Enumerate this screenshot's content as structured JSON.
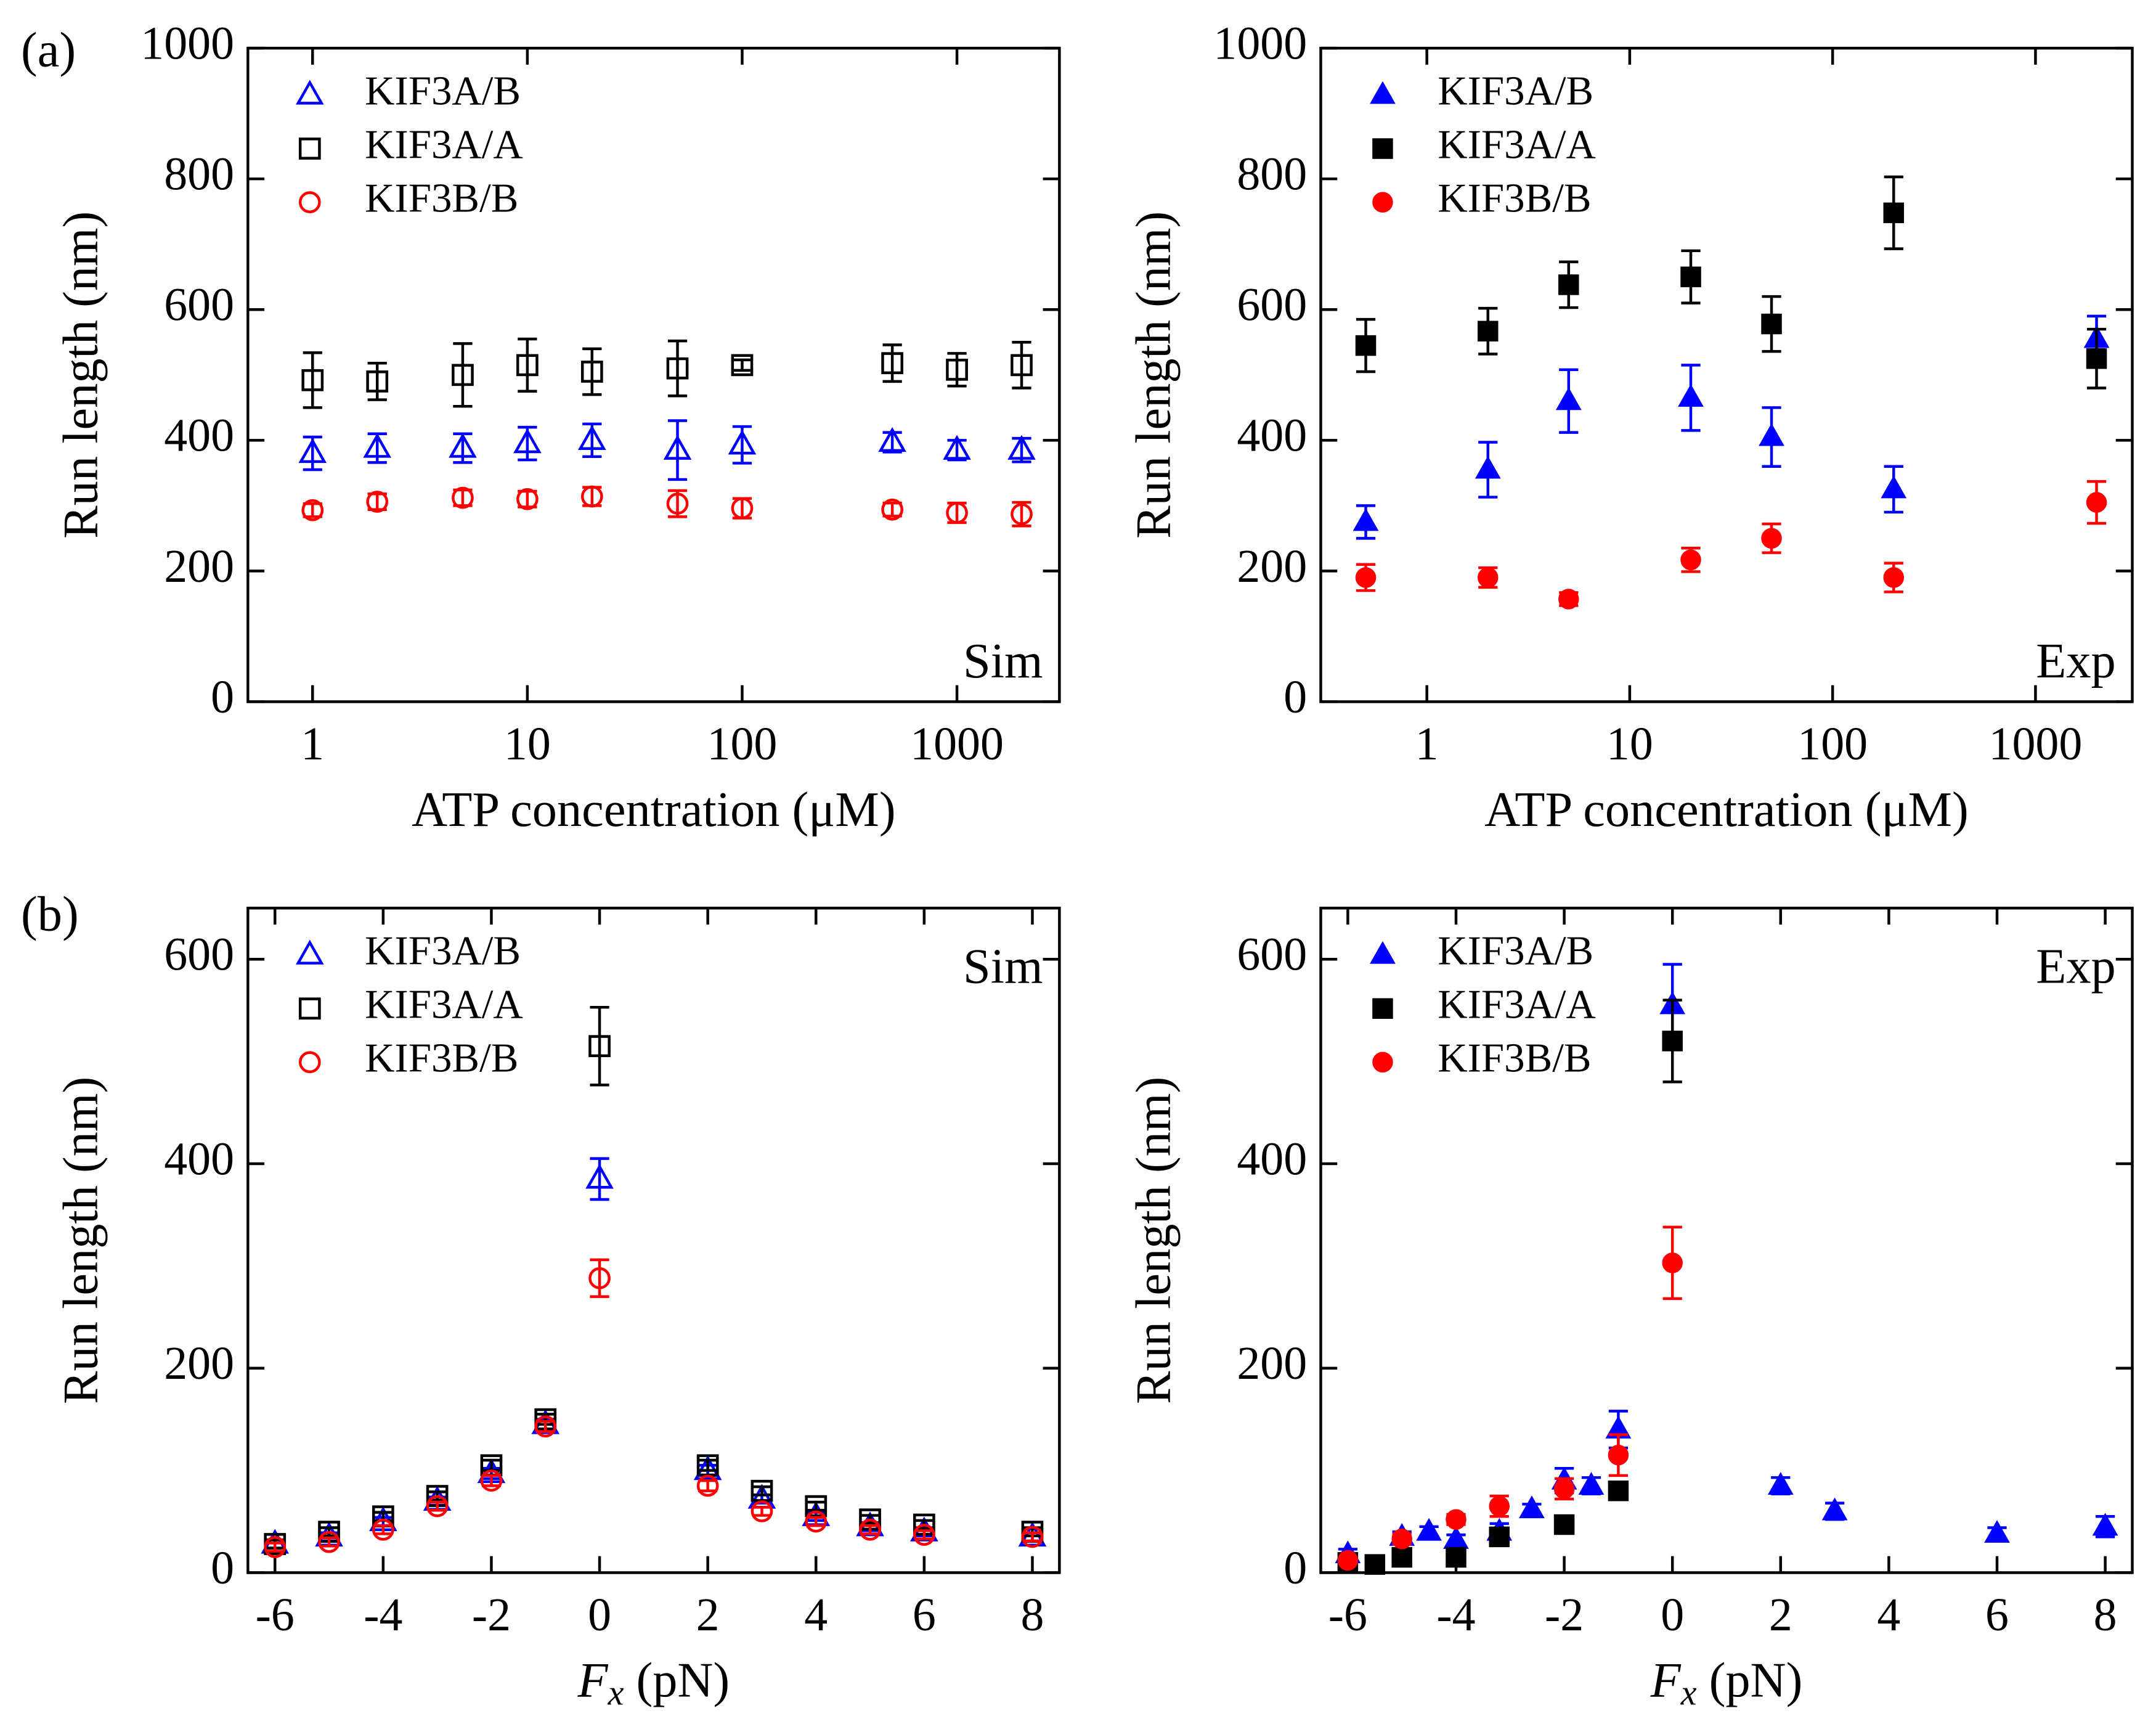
{
  "chart_data": [
    {
      "type": "scatter",
      "panel_label": "(a)",
      "annotation": "Sim",
      "annotation_corner": "lower right",
      "x_label": "ATP concentration (μM)",
      "y_label": "Run length (nm)",
      "xscale": "log",
      "xlim": [
        0.5,
        3000
      ],
      "ylim": [
        0,
        1000
      ],
      "xticks": [
        1,
        10,
        100,
        1000
      ],
      "yticks": [
        0,
        200,
        400,
        600,
        800,
        1000
      ],
      "legend": "upper left",
      "series": [
        {
          "name": "KIF3A/B",
          "color": "#0000ff",
          "marker": "triangle-open",
          "x": [
            1,
            2,
            5,
            10,
            20,
            50,
            100,
            500,
            1000,
            2000
          ],
          "values": [
            380,
            388,
            388,
            395,
            400,
            385,
            393,
            397,
            385,
            385
          ],
          "errors": [
            25,
            22,
            22,
            25,
            25,
            45,
            28,
            15,
            15,
            18
          ]
        },
        {
          "name": "KIF3A/A",
          "color": "#000000",
          "marker": "square-open",
          "x": [
            1,
            2,
            5,
            10,
            20,
            50,
            100,
            500,
            1000,
            2000
          ],
          "values": [
            492,
            490,
            500,
            515,
            505,
            510,
            515,
            518,
            508,
            515
          ],
          "errors": [
            42,
            28,
            48,
            40,
            35,
            42,
            8,
            28,
            25,
            35
          ]
        },
        {
          "name": "KIF3B/B",
          "color": "#ff0000",
          "marker": "circle-open",
          "x": [
            1,
            2,
            5,
            10,
            20,
            50,
            100,
            500,
            1000,
            2000
          ],
          "values": [
            293,
            306,
            312,
            310,
            314,
            303,
            296,
            294,
            289,
            287
          ],
          "errors": [
            10,
            12,
            12,
            12,
            14,
            20,
            15,
            10,
            15,
            18
          ]
        }
      ]
    },
    {
      "type": "scatter",
      "annotation": "Exp",
      "annotation_corner": "lower right",
      "x_label": "ATP concentration (μM)",
      "y_label": "Run length (nm)",
      "xscale": "log",
      "xlim": [
        0.3,
        3000
      ],
      "ylim": [
        0,
        1000
      ],
      "xticks": [
        1,
        10,
        100,
        1000
      ],
      "yticks": [
        0,
        200,
        400,
        600,
        800,
        1000
      ],
      "legend": "upper left",
      "series": [
        {
          "name": "KIF3A/B",
          "color": "#0000ff",
          "marker": "triangle",
          "x": [
            0.5,
            2,
            5,
            20,
            50,
            200,
            2000
          ],
          "values": [
            275,
            355,
            460,
            465,
            405,
            325,
            555
          ],
          "errors": [
            25,
            42,
            48,
            50,
            45,
            35,
            35
          ]
        },
        {
          "name": "KIF3A/A",
          "color": "#000000",
          "marker": "square",
          "x": [
            0.5,
            2,
            5,
            20,
            50,
            200,
            2000
          ],
          "values": [
            545,
            567,
            638,
            650,
            578,
            748,
            525
          ],
          "errors": [
            40,
            35,
            35,
            40,
            42,
            55,
            45
          ]
        },
        {
          "name": "KIF3B/B",
          "color": "#ff0000",
          "marker": "circle",
          "x": [
            0.5,
            2,
            5,
            20,
            50,
            200,
            2000
          ],
          "values": [
            190,
            190,
            157,
            217,
            250,
            190,
            305
          ],
          "errors": [
            20,
            15,
            10,
            18,
            22,
            22,
            32
          ]
        }
      ]
    },
    {
      "type": "scatter",
      "panel_label": "(b)",
      "annotation": "Sim",
      "annotation_corner": "upper right",
      "x_label": {
        "symbol": "F",
        "subscript": "x",
        "unit": "(pN)"
      },
      "y_label": "Run length (nm)",
      "xlim": [
        -6.5,
        8.5
      ],
      "ylim": [
        0,
        650
      ],
      "xticks": [
        -6,
        -4,
        -2,
        0,
        2,
        4,
        6,
        8
      ],
      "yticks": [
        0,
        200,
        400,
        600
      ],
      "legend": "upper left",
      "series": [
        {
          "name": "KIF3A/B",
          "color": "#0000ff",
          "marker": "triangle-open",
          "x": [
            -6,
            -5,
            -4,
            -3,
            -2,
            -1,
            0,
            2,
            3,
            4,
            5,
            6,
            8
          ],
          "values": [
            28,
            35,
            50,
            70,
            97,
            145,
            385,
            100,
            72,
            55,
            45,
            40,
            35
          ],
          "errors": [
            4,
            4,
            4,
            4,
            5,
            5,
            20,
            5,
            4,
            4,
            4,
            4,
            4
          ]
        },
        {
          "name": "KIF3A/A",
          "color": "#000000",
          "marker": "square-open",
          "x": [
            -6,
            -5,
            -4,
            -3,
            -2,
            -1,
            0,
            2,
            3,
            4,
            5,
            6,
            8
          ],
          "values": [
            28,
            40,
            55,
            75,
            105,
            150,
            515,
            105,
            80,
            65,
            52,
            47,
            40
          ],
          "errors": [
            4,
            4,
            4,
            4,
            5,
            5,
            38,
            5,
            4,
            4,
            4,
            4,
            4
          ]
        },
        {
          "name": "KIF3B/B",
          "color": "#ff0000",
          "marker": "circle-open",
          "x": [
            -6,
            -5,
            -4,
            -3,
            -2,
            -1,
            0,
            2,
            3,
            4,
            5,
            6,
            8
          ],
          "values": [
            25,
            30,
            42,
            65,
            90,
            143,
            288,
            85,
            60,
            50,
            42,
            37,
            35
          ],
          "errors": [
            4,
            4,
            4,
            4,
            5,
            5,
            18,
            5,
            4,
            4,
            4,
            4,
            4
          ]
        }
      ]
    },
    {
      "type": "scatter",
      "annotation": "Exp",
      "annotation_corner": "upper right",
      "x_label": {
        "symbol": "F",
        "subscript": "x",
        "unit": "(pN)"
      },
      "y_label": "Run length (nm)",
      "xlim": [
        -6.5,
        8.5
      ],
      "ylim": [
        0,
        650
      ],
      "xticks": [
        -6,
        -4,
        -2,
        0,
        2,
        4,
        6,
        8
      ],
      "yticks": [
        0,
        200,
        400,
        600
      ],
      "legend": "upper left",
      "series": [
        {
          "name": "KIF3A/B",
          "color": "#0000ff",
          "marker": "triangle",
          "x": [
            -6,
            -5,
            -4.5,
            -4,
            -3.2,
            -2.6,
            -2,
            -1.5,
            -1,
            0,
            2,
            3,
            6,
            8
          ],
          "values": [
            18,
            35,
            40,
            32,
            40,
            62,
            90,
            85,
            140,
            555,
            85,
            60,
            38,
            45
          ],
          "errors": [
            5,
            5,
            5,
            5,
            8,
            5,
            12,
            8,
            18,
            40,
            8,
            8,
            6,
            10
          ]
        },
        {
          "name": "KIF3A/A",
          "color": "#000000",
          "marker": "square",
          "x": [
            -6,
            -5.5,
            -5,
            -4,
            -3.2,
            -2,
            -1,
            0
          ],
          "values": [
            10,
            8,
            15,
            15,
            35,
            47,
            80,
            520
          ],
          "errors": [
            3,
            3,
            3,
            3,
            3,
            3,
            5,
            40
          ]
        },
        {
          "name": "KIF3B/B",
          "color": "#ff0000",
          "marker": "circle",
          "x": [
            -6,
            -5,
            -4,
            -3.2,
            -2,
            -1,
            0
          ],
          "values": [
            12,
            33,
            52,
            65,
            82,
            115,
            303
          ],
          "errors": [
            3,
            5,
            5,
            10,
            10,
            20,
            35
          ]
        }
      ]
    }
  ]
}
